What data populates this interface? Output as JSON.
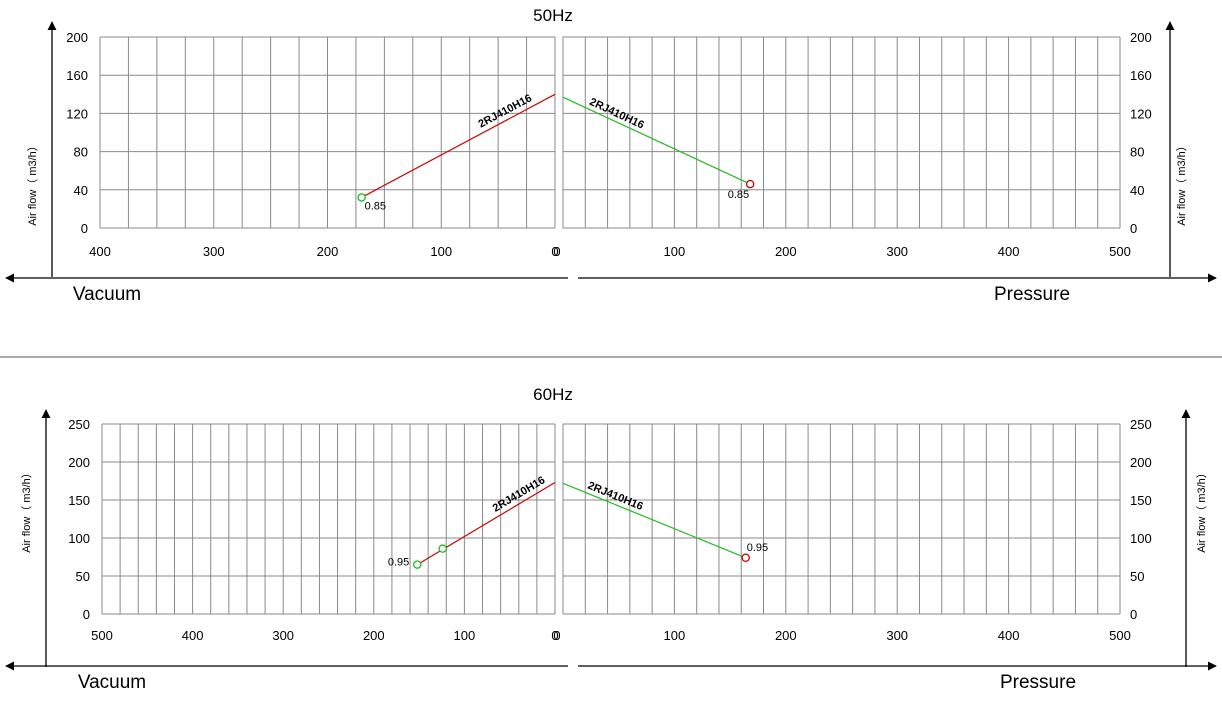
{
  "chart_data": [
    {
      "type": "line",
      "title": "50Hz",
      "ylabel": "Air flow（ m3/h）",
      "left_label": "Vacuum",
      "right_label": "Pressure",
      "ylim": [
        0,
        200
      ],
      "yticks": [
        0,
        40,
        80,
        120,
        160,
        200
      ],
      "vacuum_xlim": [
        0,
        400
      ],
      "vacuum_xticks": [
        400,
        300,
        200,
        100,
        0
      ],
      "pressure_xlim": [
        0,
        500
      ],
      "pressure_xticks": [
        0,
        100,
        200,
        300,
        400,
        500
      ],
      "grid": true,
      "series": [
        {
          "name": "2RJ410H16",
          "side": "vacuum",
          "color": "#cc0000",
          "x": [
            0,
            170
          ],
          "y": [
            140,
            32
          ],
          "operating_point": {
            "x": 170,
            "y": 32,
            "label": "0.85",
            "color": "#22bb22"
          }
        },
        {
          "name": "2RJ410H16",
          "side": "pressure",
          "color": "#22bb22",
          "x": [
            0,
            168
          ],
          "y": [
            137,
            46
          ],
          "operating_point": {
            "x": 168,
            "y": 46,
            "label": "0.85",
            "color": "#cc0000"
          }
        }
      ]
    },
    {
      "type": "line",
      "title": "60Hz",
      "ylabel": "Air flow（ m3/h）",
      "left_label": "Vacuum",
      "right_label": "Pressure",
      "ylim": [
        0,
        250
      ],
      "yticks": [
        0,
        50,
        100,
        150,
        200,
        250
      ],
      "vacuum_xlim": [
        0,
        500
      ],
      "vacuum_xticks": [
        500,
        400,
        300,
        200,
        100,
        0
      ],
      "pressure_xlim": [
        0,
        500
      ],
      "pressure_xticks": [
        0,
        100,
        200,
        300,
        400,
        500
      ],
      "grid": true,
      "series": [
        {
          "name": "2RJ410H16",
          "side": "vacuum",
          "color": "#cc0000",
          "x": [
            0,
            152
          ],
          "y": [
            173,
            65
          ],
          "operating_point": {
            "x": 152,
            "y": 65,
            "label": "0.95",
            "color": "#22bb22"
          },
          "extra_points": [
            {
              "x": 124,
              "y": 86,
              "color": "#22bb22"
            }
          ]
        },
        {
          "name": "2RJ410H16",
          "side": "pressure",
          "color": "#22bb22",
          "x": [
            0,
            164
          ],
          "y": [
            172,
            74
          ],
          "operating_point": {
            "x": 164,
            "y": 74,
            "label": "0.95",
            "color": "#cc0000"
          }
        }
      ]
    }
  ]
}
